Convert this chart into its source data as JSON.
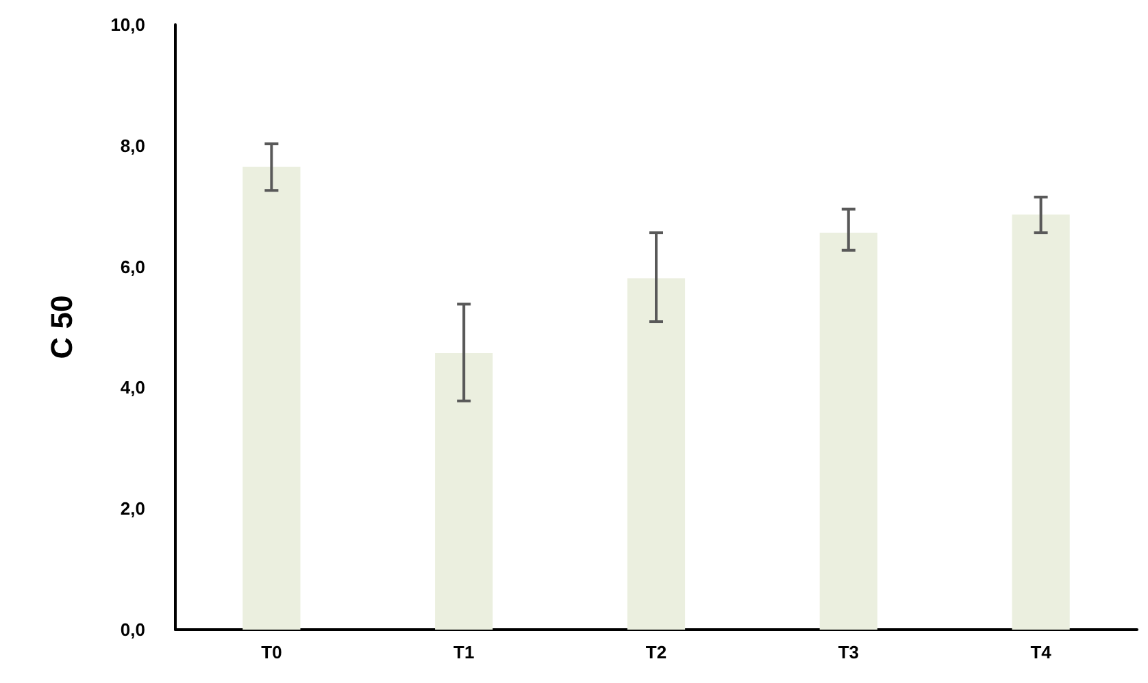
{
  "chart_data": {
    "type": "bar",
    "ylabel": "C 50",
    "categories": [
      "T0",
      "T1",
      "T2",
      "T3",
      "T4"
    ],
    "values": [
      7.65,
      4.57,
      5.81,
      6.56,
      6.86
    ],
    "errors": [
      [
        7.26,
        8.03
      ],
      [
        3.78,
        5.38
      ],
      [
        5.09,
        6.56
      ],
      [
        6.27,
        6.95
      ],
      [
        6.56,
        7.15
      ]
    ],
    "color": "#ebefdf",
    "ylim": [
      0,
      10
    ],
    "yticks": [
      {
        "value": 0,
        "label": "0,0"
      },
      {
        "value": 2,
        "label": "2,0"
      },
      {
        "value": 4,
        "label": "4,0"
      },
      {
        "value": 6,
        "label": "6,0"
      },
      {
        "value": 8,
        "label": "8,0"
      },
      {
        "value": 10,
        "label": "10,0"
      }
    ],
    "grid": false
  }
}
